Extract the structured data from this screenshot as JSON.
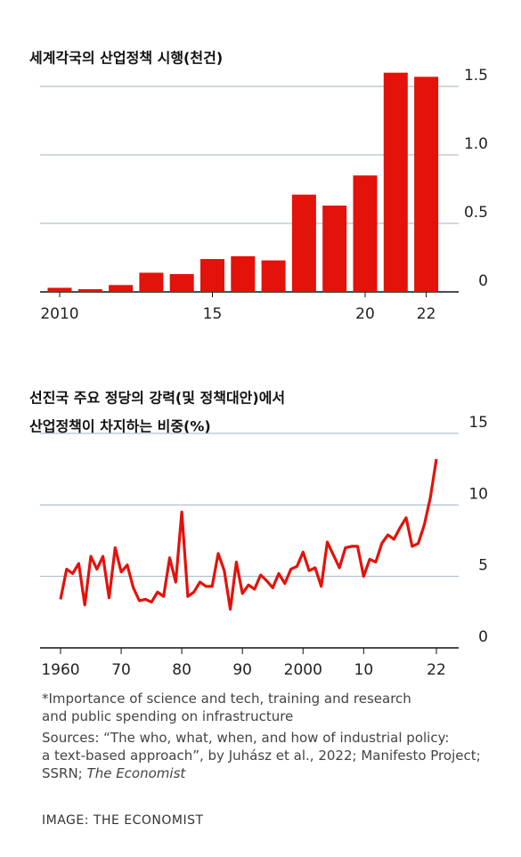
{
  "chart_data": [
    {
      "type": "bar",
      "title": [
        "세계각국의 산업정책 시행(천건)"
      ],
      "categories": [
        "2010",
        null,
        null,
        null,
        null,
        "15",
        null,
        null,
        null,
        null,
        "20",
        null,
        "22"
      ],
      "values": [
        0.03,
        0.02,
        0.05,
        0.14,
        0.13,
        0.24,
        0.26,
        0.23,
        0.71,
        0.63,
        0.85,
        1.6,
        1.57
      ],
      "color": "#e3120b",
      "ylim": [
        0,
        1.65
      ],
      "yticks": [
        0,
        0.5,
        {
          "value": 1,
          "label": "1.0"
        },
        1.5
      ],
      "grid": true
    },
    {
      "type": "line",
      "title": [
        "선진국 주요 정당의 강력(및 정책대안)에서",
        "산업정책이 차지하는 비중(%)"
      ],
      "x": [
        1960,
        1961,
        1962,
        1963,
        1964,
        1965,
        1966,
        1967,
        1968,
        1969,
        1970,
        1971,
        1972,
        1973,
        1974,
        1975,
        1976,
        1977,
        1978,
        1979,
        1980,
        1981,
        1982,
        1983,
        1984,
        1985,
        1986,
        1987,
        1988,
        1989,
        1990,
        1991,
        1992,
        1993,
        1994,
        1995,
        1996,
        1997,
        1998,
        1999,
        2000,
        2001,
        2002,
        2003,
        2004,
        2005,
        2006,
        2007,
        2008,
        2009,
        2010,
        2011,
        2012,
        2013,
        2014,
        2015,
        2016,
        2017,
        2018,
        2019,
        2020,
        2021,
        2022
      ],
      "values": [
        3.4,
        5.5,
        5.2,
        5.9,
        3.0,
        6.4,
        5.5,
        6.4,
        3.5,
        7.0,
        5.3,
        5.8,
        4.2,
        3.3,
        3.4,
        3.2,
        3.9,
        3.6,
        6.3,
        4.6,
        9.5,
        3.6,
        3.9,
        4.6,
        4.3,
        4.3,
        6.6,
        5.4,
        2.7,
        6.0,
        3.8,
        4.4,
        4.1,
        5.1,
        4.7,
        4.2,
        5.2,
        4.5,
        5.5,
        5.7,
        6.7,
        5.4,
        5.6,
        4.3,
        7.4,
        6.5,
        5.6,
        7.0,
        7.1,
        7.1,
        5.0,
        6.2,
        6.0,
        7.3,
        7.9,
        7.6,
        8.4,
        9.1,
        7.1,
        7.3,
        8.6,
        10.5,
        13.2
      ],
      "color": "#e3120b",
      "xlim": [
        1958.5,
        2025
      ],
      "xticks": [
        1960,
        {
          "value": 1970,
          "label": "70"
        },
        {
          "value": 1980,
          "label": "80"
        },
        {
          "value": 1990,
          "label": "90"
        },
        2000,
        {
          "value": 2010,
          "label": "10"
        },
        {
          "value": 2022,
          "label": "22"
        }
      ],
      "ylim": [
        0,
        15
      ],
      "yticks": [
        0,
        5,
        10,
        15
      ],
      "grid": true
    }
  ],
  "footnote": [
    "*Importance of science and tech, training and research",
    "and public spending on infrastructure"
  ],
  "sources": [
    "Sources: “The who, what, when, and how of industrial policy:",
    "a text-based approach”, by Juhász et al., 2022; Manifesto Project;",
    "SSRN;"
  ],
  "sources_italic": "The Economist",
  "credit": "IMAGE: THE ECONOMIST"
}
